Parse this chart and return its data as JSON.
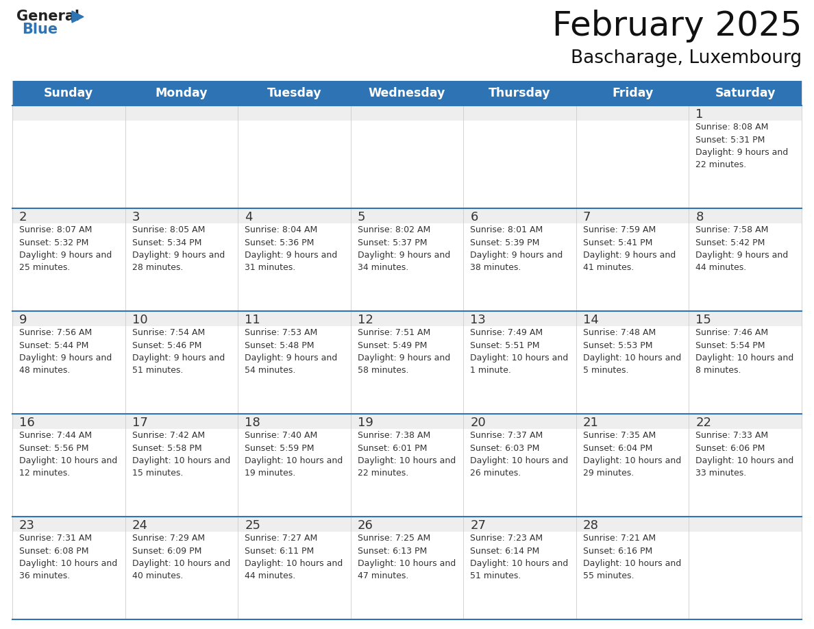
{
  "title": "February 2025",
  "subtitle": "Bascharage, Luxembourg",
  "days_of_week": [
    "Sunday",
    "Monday",
    "Tuesday",
    "Wednesday",
    "Thursday",
    "Friday",
    "Saturday"
  ],
  "header_bg": "#2E74B5",
  "header_text": "#FFFFFF",
  "cell_top_bg": "#EEEEEE",
  "cell_body_bg": "#FFFFFF",
  "line_color": "#2E74B5",
  "sep_color": "#CCCCCC",
  "text_color": "#333333",
  "day_number_color": "#333333",
  "calendar_data": [
    [
      null,
      null,
      null,
      null,
      null,
      null,
      1
    ],
    [
      2,
      3,
      4,
      5,
      6,
      7,
      8
    ],
    [
      9,
      10,
      11,
      12,
      13,
      14,
      15
    ],
    [
      16,
      17,
      18,
      19,
      20,
      21,
      22
    ],
    [
      23,
      24,
      25,
      26,
      27,
      28,
      null
    ]
  ],
  "sunrise_data": {
    "1": "8:08 AM",
    "2": "8:07 AM",
    "3": "8:05 AM",
    "4": "8:04 AM",
    "5": "8:02 AM",
    "6": "8:01 AM",
    "7": "7:59 AM",
    "8": "7:58 AM",
    "9": "7:56 AM",
    "10": "7:54 AM",
    "11": "7:53 AM",
    "12": "7:51 AM",
    "13": "7:49 AM",
    "14": "7:48 AM",
    "15": "7:46 AM",
    "16": "7:44 AM",
    "17": "7:42 AM",
    "18": "7:40 AM",
    "19": "7:38 AM",
    "20": "7:37 AM",
    "21": "7:35 AM",
    "22": "7:33 AM",
    "23": "7:31 AM",
    "24": "7:29 AM",
    "25": "7:27 AM",
    "26": "7:25 AM",
    "27": "7:23 AM",
    "28": "7:21 AM"
  },
  "sunset_data": {
    "1": "5:31 PM",
    "2": "5:32 PM",
    "3": "5:34 PM",
    "4": "5:36 PM",
    "5": "5:37 PM",
    "6": "5:39 PM",
    "7": "5:41 PM",
    "8": "5:42 PM",
    "9": "5:44 PM",
    "10": "5:46 PM",
    "11": "5:48 PM",
    "12": "5:49 PM",
    "13": "5:51 PM",
    "14": "5:53 PM",
    "15": "5:54 PM",
    "16": "5:56 PM",
    "17": "5:58 PM",
    "18": "5:59 PM",
    "19": "6:01 PM",
    "20": "6:03 PM",
    "21": "6:04 PM",
    "22": "6:06 PM",
    "23": "6:08 PM",
    "24": "6:09 PM",
    "25": "6:11 PM",
    "26": "6:13 PM",
    "27": "6:14 PM",
    "28": "6:16 PM"
  },
  "daylight_data": {
    "1": "9 hours and 22 minutes.",
    "2": "9 hours and 25 minutes.",
    "3": "9 hours and 28 minutes.",
    "4": "9 hours and 31 minutes.",
    "5": "9 hours and 34 minutes.",
    "6": "9 hours and 38 minutes.",
    "7": "9 hours and 41 minutes.",
    "8": "9 hours and 44 minutes.",
    "9": "9 hours and 48 minutes.",
    "10": "9 hours and 51 minutes.",
    "11": "9 hours and 54 minutes.",
    "12": "9 hours and 58 minutes.",
    "13": "10 hours and 1 minute.",
    "14": "10 hours and 5 minutes.",
    "15": "10 hours and 8 minutes.",
    "16": "10 hours and 12 minutes.",
    "17": "10 hours and 15 minutes.",
    "18": "10 hours and 19 minutes.",
    "19": "10 hours and 22 minutes.",
    "20": "10 hours and 26 minutes.",
    "21": "10 hours and 29 minutes.",
    "22": "10 hours and 33 minutes.",
    "23": "10 hours and 36 minutes.",
    "24": "10 hours and 40 minutes.",
    "25": "10 hours and 44 minutes.",
    "26": "10 hours and 47 minutes.",
    "27": "10 hours and 51 minutes.",
    "28": "10 hours and 55 minutes."
  }
}
